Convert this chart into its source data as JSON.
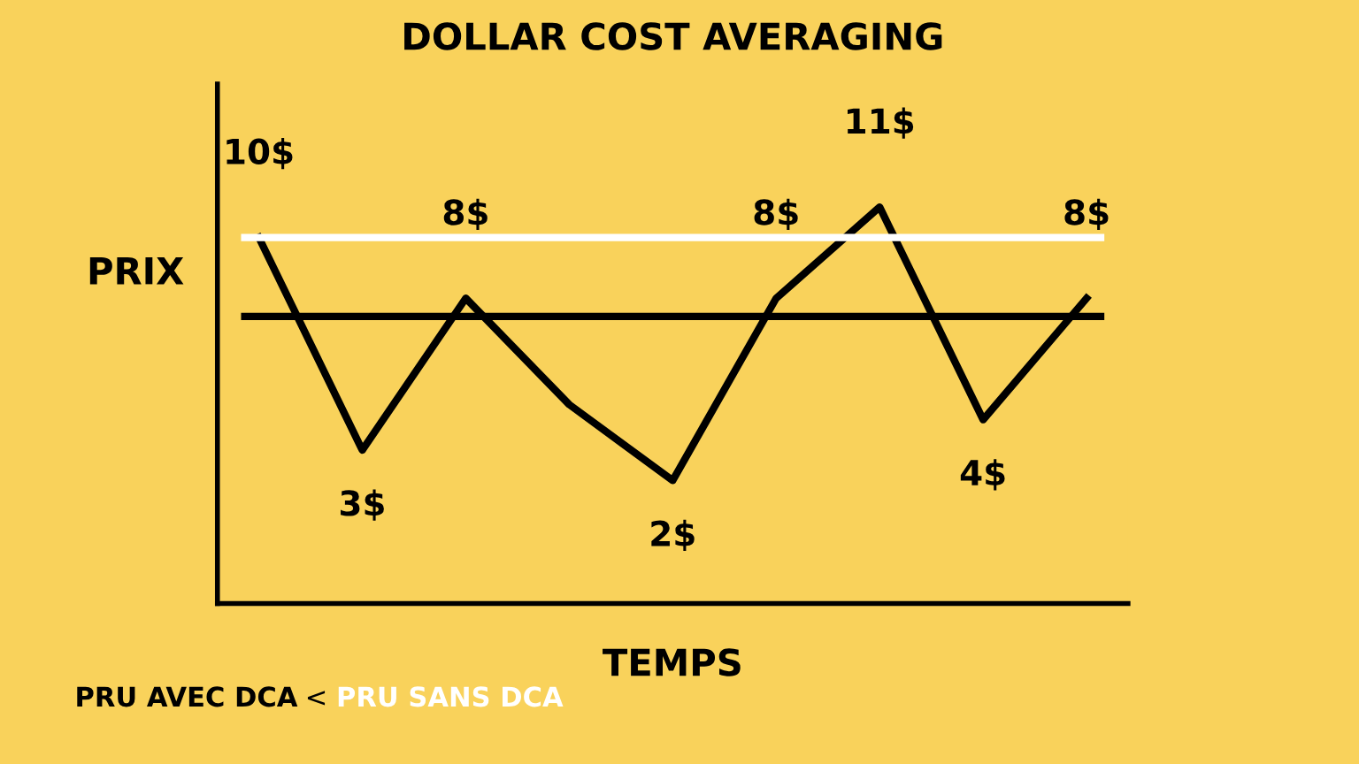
{
  "chart_data": {
    "type": "line",
    "title": "DOLLAR COST AVERAGING",
    "xlabel": "TEMPS",
    "ylabel": "PRIX",
    "categories": [
      null,
      null,
      null,
      null,
      null,
      null,
      null,
      null,
      null
    ],
    "series": [
      {
        "color": "#000000",
        "values": [
          10,
          3,
          8,
          4.5,
          2,
          8,
          11,
          4,
          8
        ],
        "value_labels": [
          "10$",
          "3$",
          "8$",
          null,
          "2$",
          "8$",
          "11$",
          "4$",
          "8$"
        ]
      }
    ],
    "marker": "none",
    "line_style": "solid",
    "ref_lines": [
      {
        "axis": "y",
        "value": 10,
        "label": "PRU SANS DCA",
        "color": "#ffffff"
      },
      {
        "axis": "y",
        "value": 7.4,
        "label": "PRU AVEC DCA",
        "color": "#000000"
      }
    ],
    "annotations": [
      "<"
    ]
  }
}
